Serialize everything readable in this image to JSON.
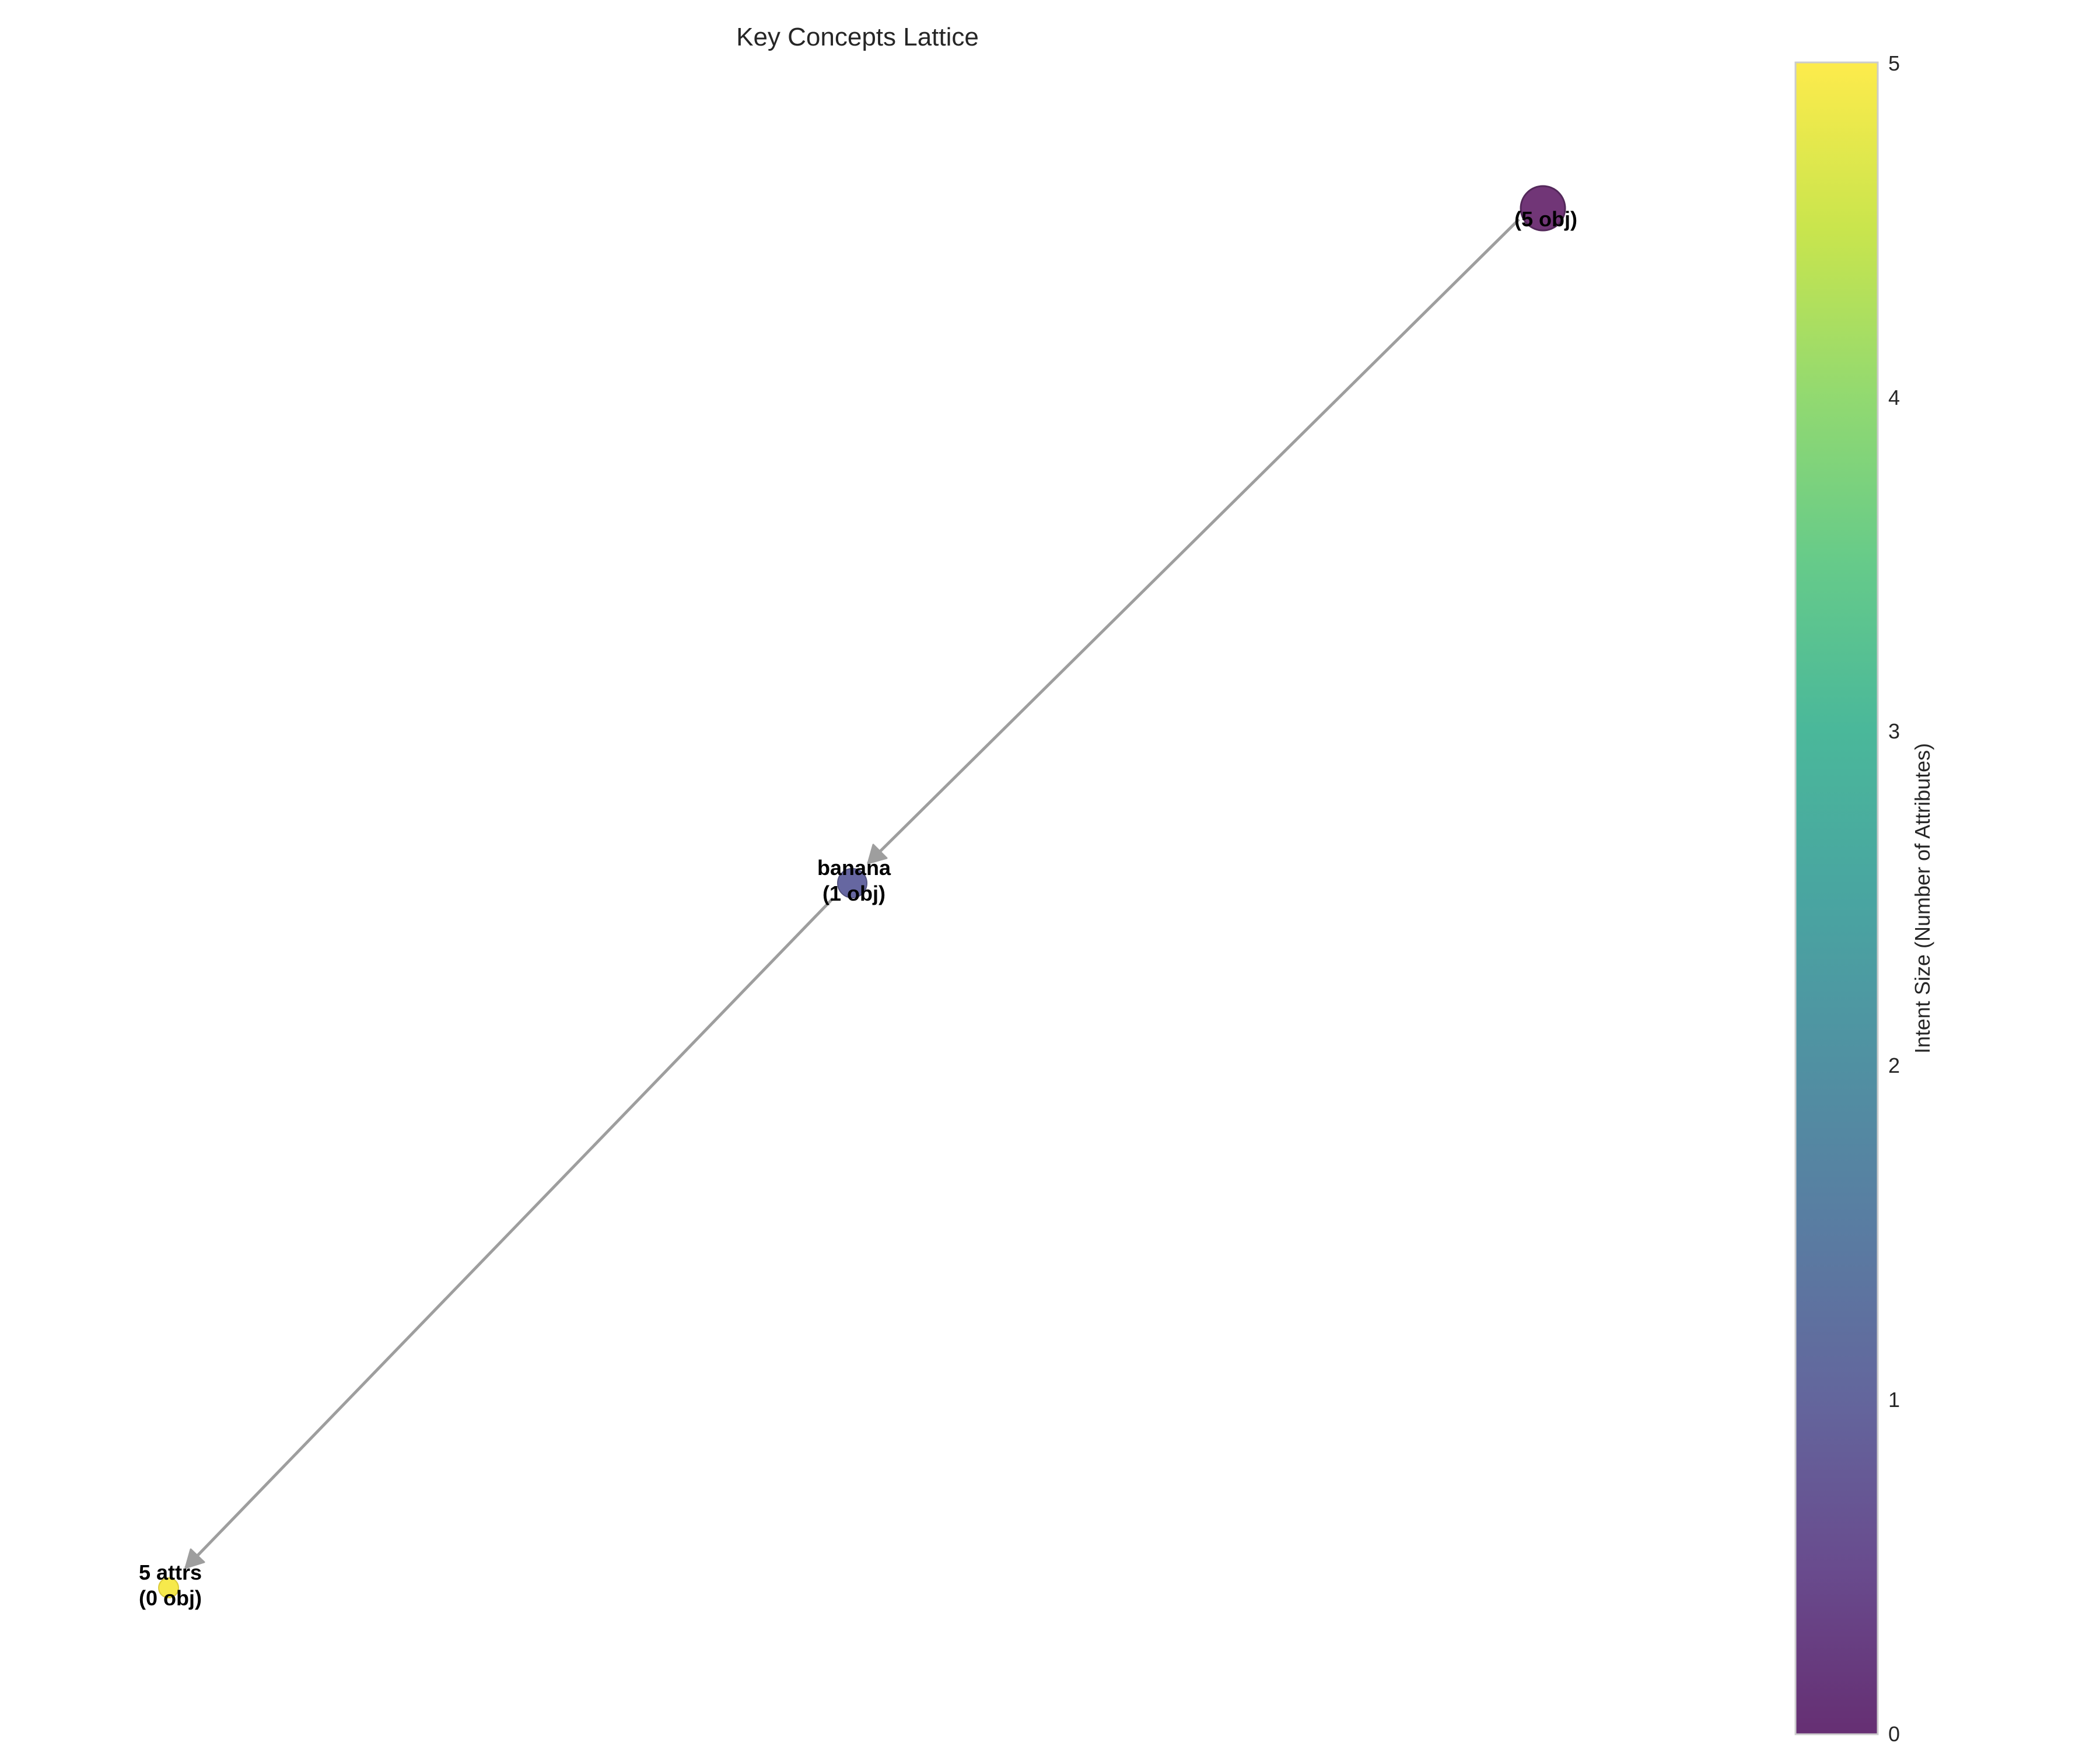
{
  "title": "Key Concepts Lattice",
  "nodes": [
    {
      "id": "top",
      "line1": "",
      "line2": "(5 obj)",
      "intent_size": 0,
      "color": "#6a2c70"
    },
    {
      "id": "banana",
      "line1": "banana",
      "line2": "(1 obj)",
      "intent_size": 1,
      "color": "#5e5f9c"
    },
    {
      "id": "bottom",
      "line1": "5 attrs",
      "line2": "(0 obj)",
      "intent_size": 5,
      "color": "#f6e843"
    }
  ],
  "edges": [
    {
      "from": "top",
      "to": "banana"
    },
    {
      "from": "banana",
      "to": "bottom"
    }
  ],
  "colorbar": {
    "label": "Intent Size (Number of Attributes)",
    "ticks": [
      "0",
      "1",
      "2",
      "3",
      "4",
      "5"
    ],
    "min": 0,
    "max": 5,
    "colormap": "viridis"
  },
  "colors": {
    "edge": "#9e9e9e",
    "node_outline": "#4a1d52"
  }
}
